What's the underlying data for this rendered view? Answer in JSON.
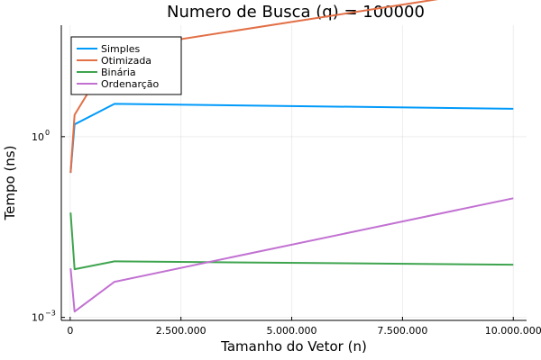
{
  "chart_data": {
    "type": "line",
    "title": "Numero de Busca (q) = 100000",
    "xlabel": "Tamanho do Vetor (n)",
    "ylabel": "Tempo (ns)",
    "yscale": "log10",
    "grid": true,
    "legend_position": "top-left",
    "xlim": [
      -200000,
      10300000
    ],
    "ylim_log10": [
      -3.05,
      1.85
    ],
    "x_ticks": [
      {
        "value": 0,
        "label": "0"
      },
      {
        "value": 2500000,
        "label": "2.500.000"
      },
      {
        "value": 5000000,
        "label": "5.000.000"
      },
      {
        "value": 7500000,
        "label": "7.500.000"
      },
      {
        "value": 10000000,
        "label": "10.000.000"
      }
    ],
    "y_ticks": [
      {
        "value": 1,
        "base": "10",
        "exp": "0"
      },
      {
        "value": 0.001,
        "base": "10",
        "exp": "−3"
      }
    ],
    "x": [
      10000,
      100000,
      1000000,
      10000000
    ],
    "series": [
      {
        "name": "Simples",
        "color": "#009AFA",
        "values": [
          0.25,
          1.6,
          3.5,
          2.9
        ]
      },
      {
        "name": "Otimizada",
        "color": "#E26F46",
        "values": [
          0.25,
          2.3,
          28,
          300
        ]
      },
      {
        "name": "Binária",
        "color": "#3EA44E",
        "values": [
          0.055,
          0.0063,
          0.0085,
          0.0075
        ]
      },
      {
        "name": "Ordenarção",
        "color": "#C271D2",
        "values": [
          0.0065,
          0.00125,
          0.0039,
          0.095
        ]
      }
    ]
  }
}
